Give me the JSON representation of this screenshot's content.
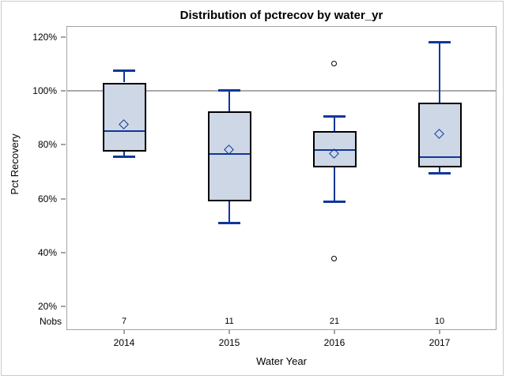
{
  "chart_data": {
    "type": "box",
    "title": "Distribution of pctrecov by water_yr",
    "xlabel": "Water Year",
    "ylabel": "Pct Recovery",
    "categories": [
      "2014",
      "2015",
      "2016",
      "2017"
    ],
    "nobs_label": "Nobs",
    "nobs": [
      "7",
      "11",
      "21",
      "10"
    ],
    "y_ticks": [
      20,
      40,
      60,
      80,
      100,
      120
    ],
    "y_tick_suffix": "%",
    "ylim": [
      11.3,
      124
    ],
    "reference_line": 100,
    "grid": "off",
    "legend": "none",
    "series": [
      {
        "category": "2014",
        "n": 7,
        "whisker_low": 75.5,
        "q1": 77.5,
        "median": 85,
        "mean": 87.5,
        "q3": 103,
        "whisker_high": 107.5,
        "outliers": []
      },
      {
        "category": "2015",
        "n": 11,
        "whisker_low": 51,
        "q1": 59,
        "median": 76.5,
        "mean": 78,
        "q3": 92.5,
        "whisker_high": 100,
        "outliers": []
      },
      {
        "category": "2016",
        "n": 21,
        "whisker_low": 59,
        "q1": 71.5,
        "median": 78,
        "mean": 76.5,
        "q3": 85,
        "whisker_high": 90.5,
        "outliers": [
          110,
          37.5
        ]
      },
      {
        "category": "2017",
        "n": 10,
        "whisker_low": 69.5,
        "q1": 71.5,
        "median": 75.5,
        "mean": 84,
        "q3": 95.5,
        "whisker_high": 118,
        "outliers": []
      }
    ],
    "colors": {
      "box_fill": "#cdd7e6",
      "box_border": "#000000",
      "line_blue": "#0f3798",
      "reference_line": "#a9a9a9",
      "wall_frame": "#a3a3a3",
      "outlier": "#000000",
      "text": "#000000"
    }
  }
}
